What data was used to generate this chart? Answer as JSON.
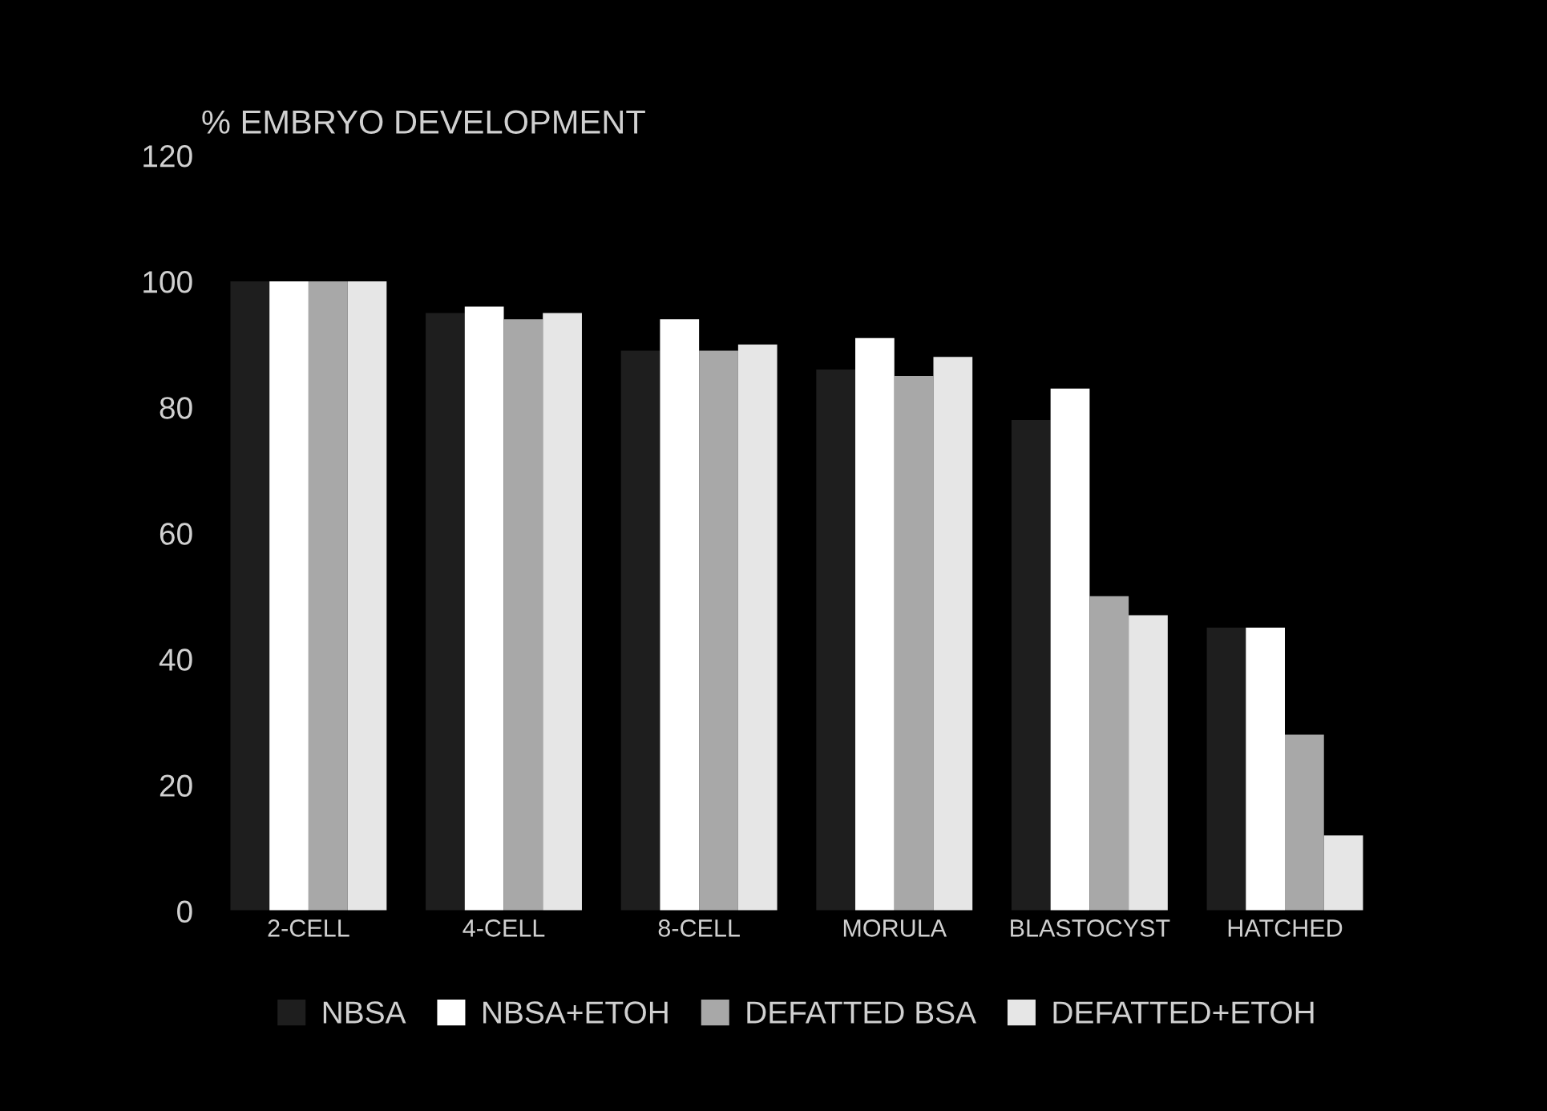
{
  "chart_data": {
    "type": "bar",
    "ylabel": "% EMBRYO DEVELOPMENT",
    "categories": [
      "2-CELL",
      "4-CELL",
      "8-CELL",
      "MORULA",
      "BLASTOCYST",
      "HATCHED"
    ],
    "series": [
      {
        "name": "NBSA",
        "color": "#1e1e1e",
        "values": [
          100,
          95,
          89,
          86,
          78,
          45
        ]
      },
      {
        "name": "NBSA+ETOH",
        "color": "#ffffff",
        "values": [
          100,
          96,
          94,
          91,
          83,
          45
        ]
      },
      {
        "name": "DEFATTED BSA",
        "color": "#a8a8a8",
        "values": [
          100,
          94,
          89,
          85,
          50,
          28
        ]
      },
      {
        "name": "DEFATTED+ETOH",
        "color": "#e6e6e6",
        "values": [
          100,
          95,
          90,
          88,
          47,
          12
        ]
      }
    ],
    "ylim": [
      0,
      120
    ],
    "yticks": [
      0,
      20,
      40,
      60,
      80,
      100,
      120
    ],
    "grid": false,
    "legend": "bottom"
  }
}
